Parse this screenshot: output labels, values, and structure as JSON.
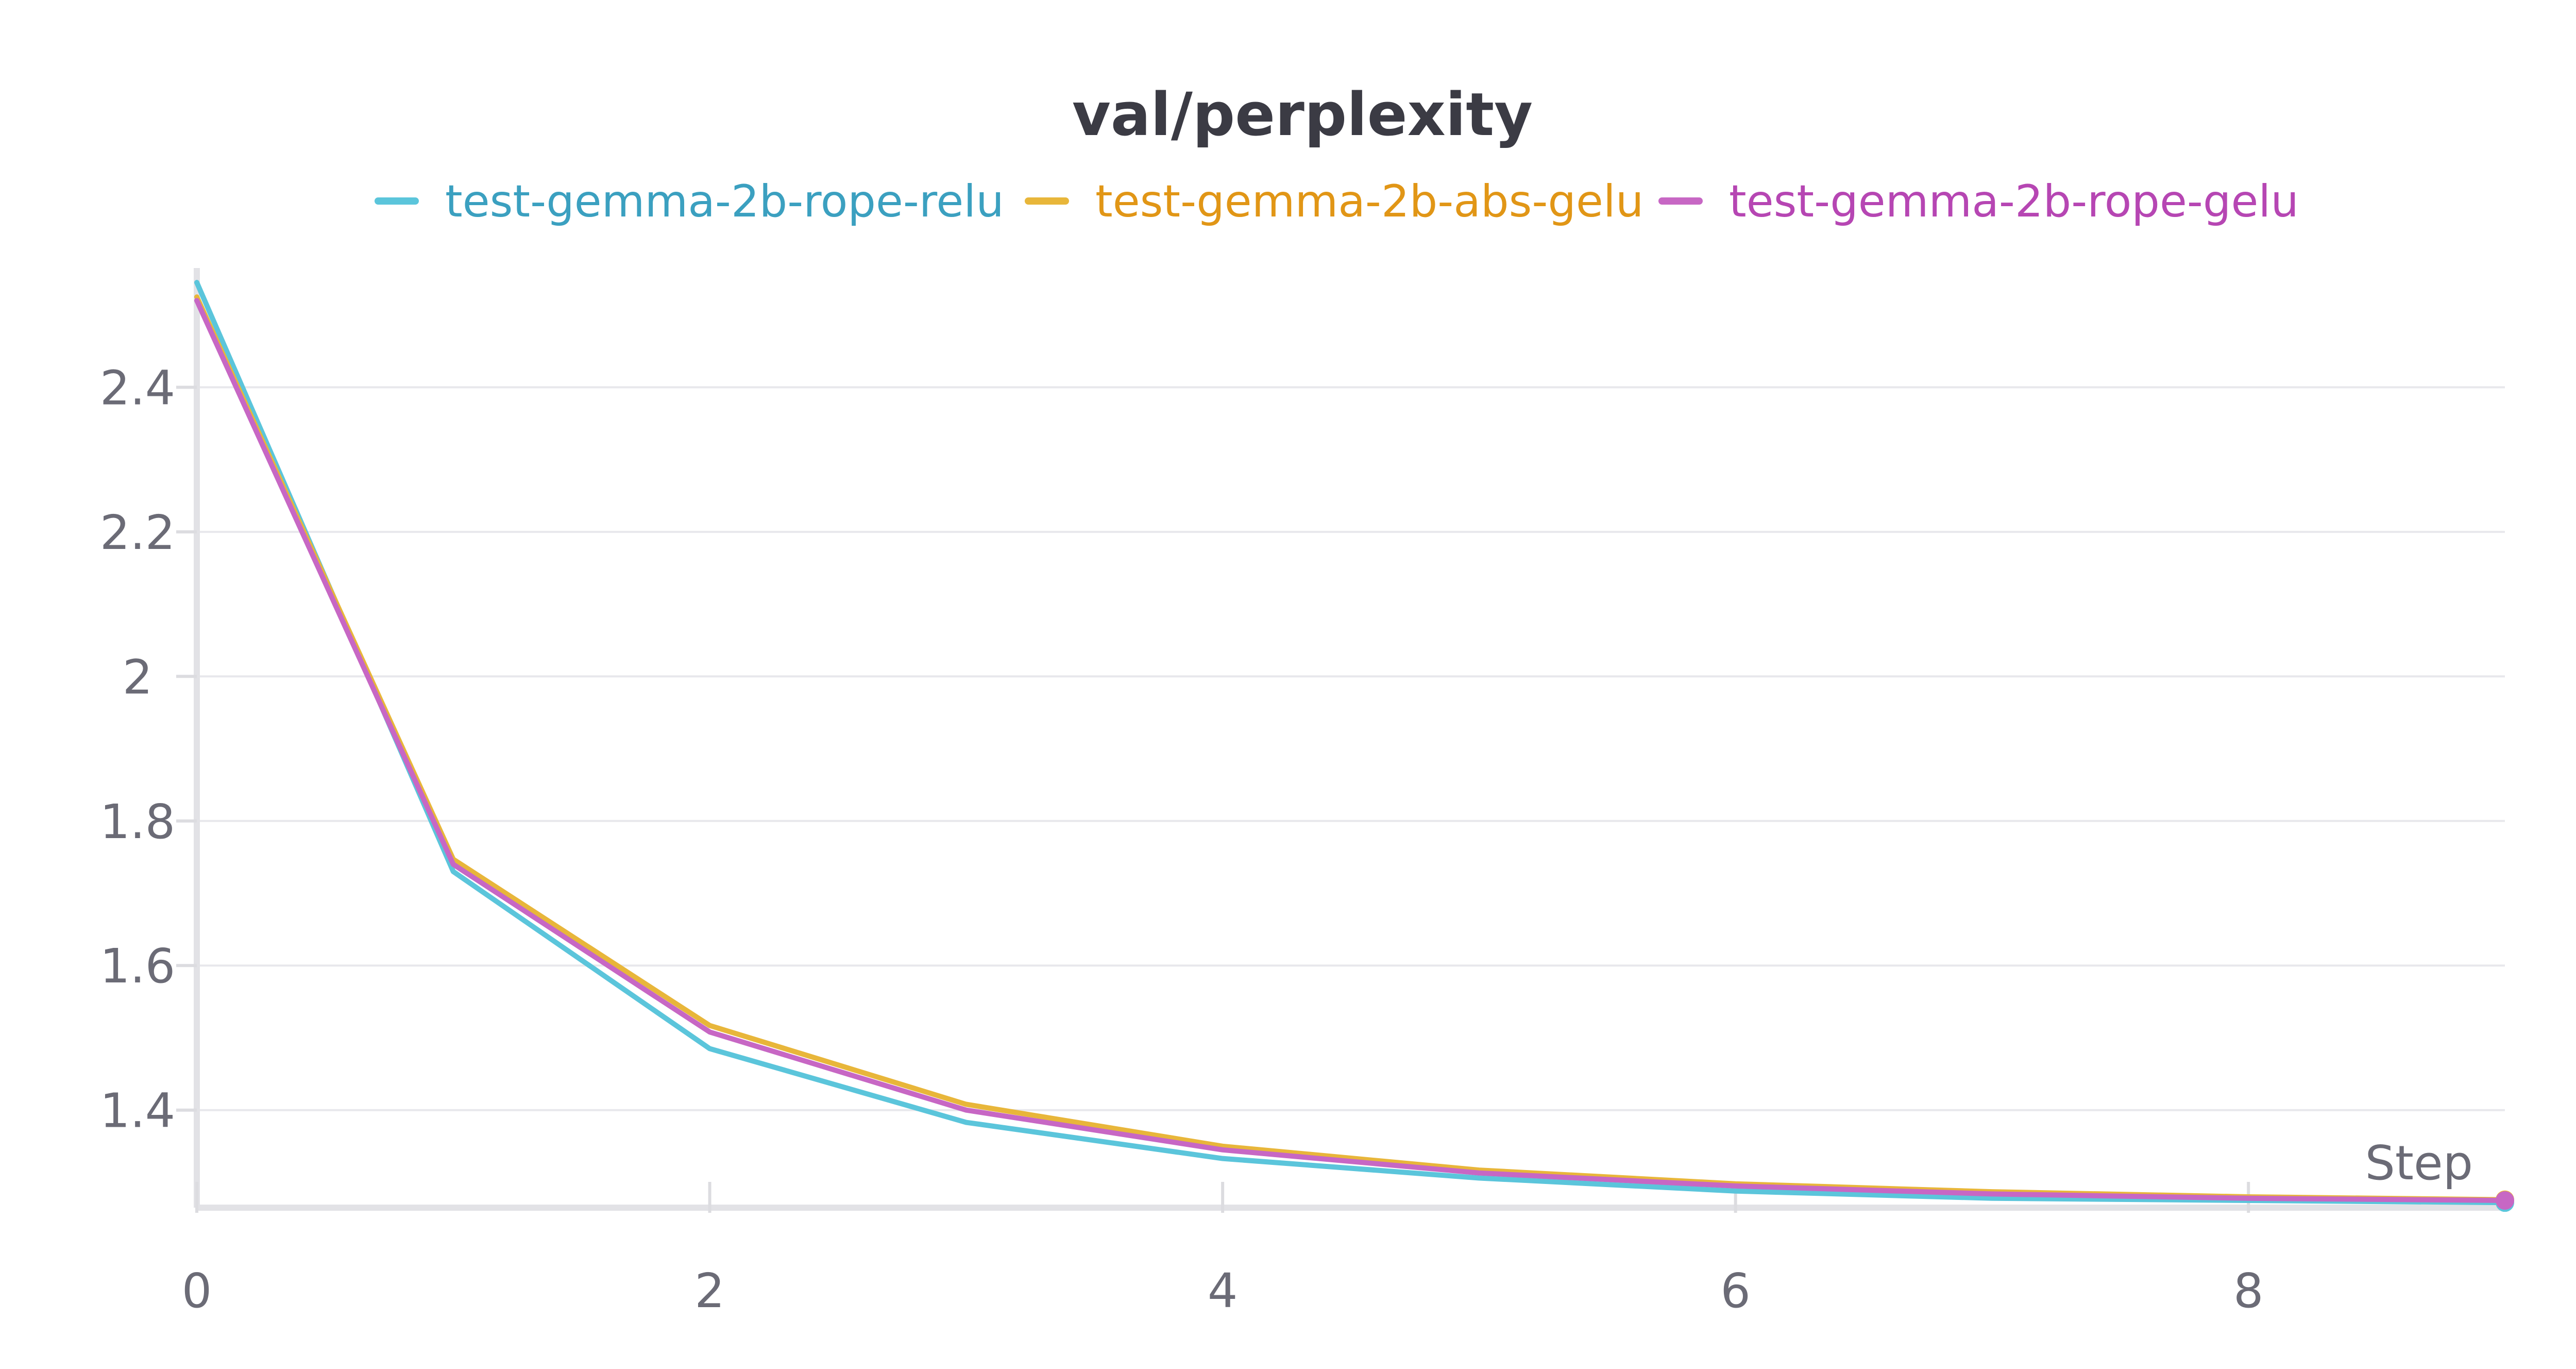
{
  "chart_data": {
    "type": "line",
    "title": "val/perplexity",
    "xlabel": "Step",
    "ylabel": "",
    "x": [
      0,
      1,
      2,
      3,
      4,
      5,
      6,
      7,
      8,
      9
    ],
    "xlim": [
      0,
      9
    ],
    "ylim": [
      1.265,
      2.565
    ],
    "xticks": [
      0,
      2,
      4,
      6,
      8
    ],
    "yticks": [
      1.4,
      1.6,
      1.8,
      2,
      2.2,
      2.4
    ],
    "xtick_labels": [
      "0",
      "2",
      "4",
      "6",
      "8"
    ],
    "ytick_labels": [
      "1.4",
      "1.6",
      "1.8",
      "2",
      "2.2",
      "2.4"
    ],
    "grid": true,
    "legend_position": "top-center",
    "series": [
      {
        "name": "test-gemma-2b-rope-relu",
        "color": "#5bc5db",
        "label_color": "#3ba0c0",
        "values": [
          2.545,
          1.73,
          1.485,
          1.383,
          1.333,
          1.306,
          1.288,
          1.278,
          1.275,
          1.272
        ]
      },
      {
        "name": "test-gemma-2b-abs-gelu",
        "color": "#e8b63a",
        "label_color": "#e19616",
        "values": [
          2.525,
          1.747,
          1.517,
          1.408,
          1.35,
          1.317,
          1.298,
          1.287,
          1.28,
          1.276
        ]
      },
      {
        "name": "test-gemma-2b-rope-gelu",
        "color": "#c767c4",
        "label_color": "#b646b3",
        "values": [
          2.52,
          1.74,
          1.508,
          1.4,
          1.345,
          1.313,
          1.295,
          1.284,
          1.278,
          1.275
        ]
      }
    ]
  }
}
